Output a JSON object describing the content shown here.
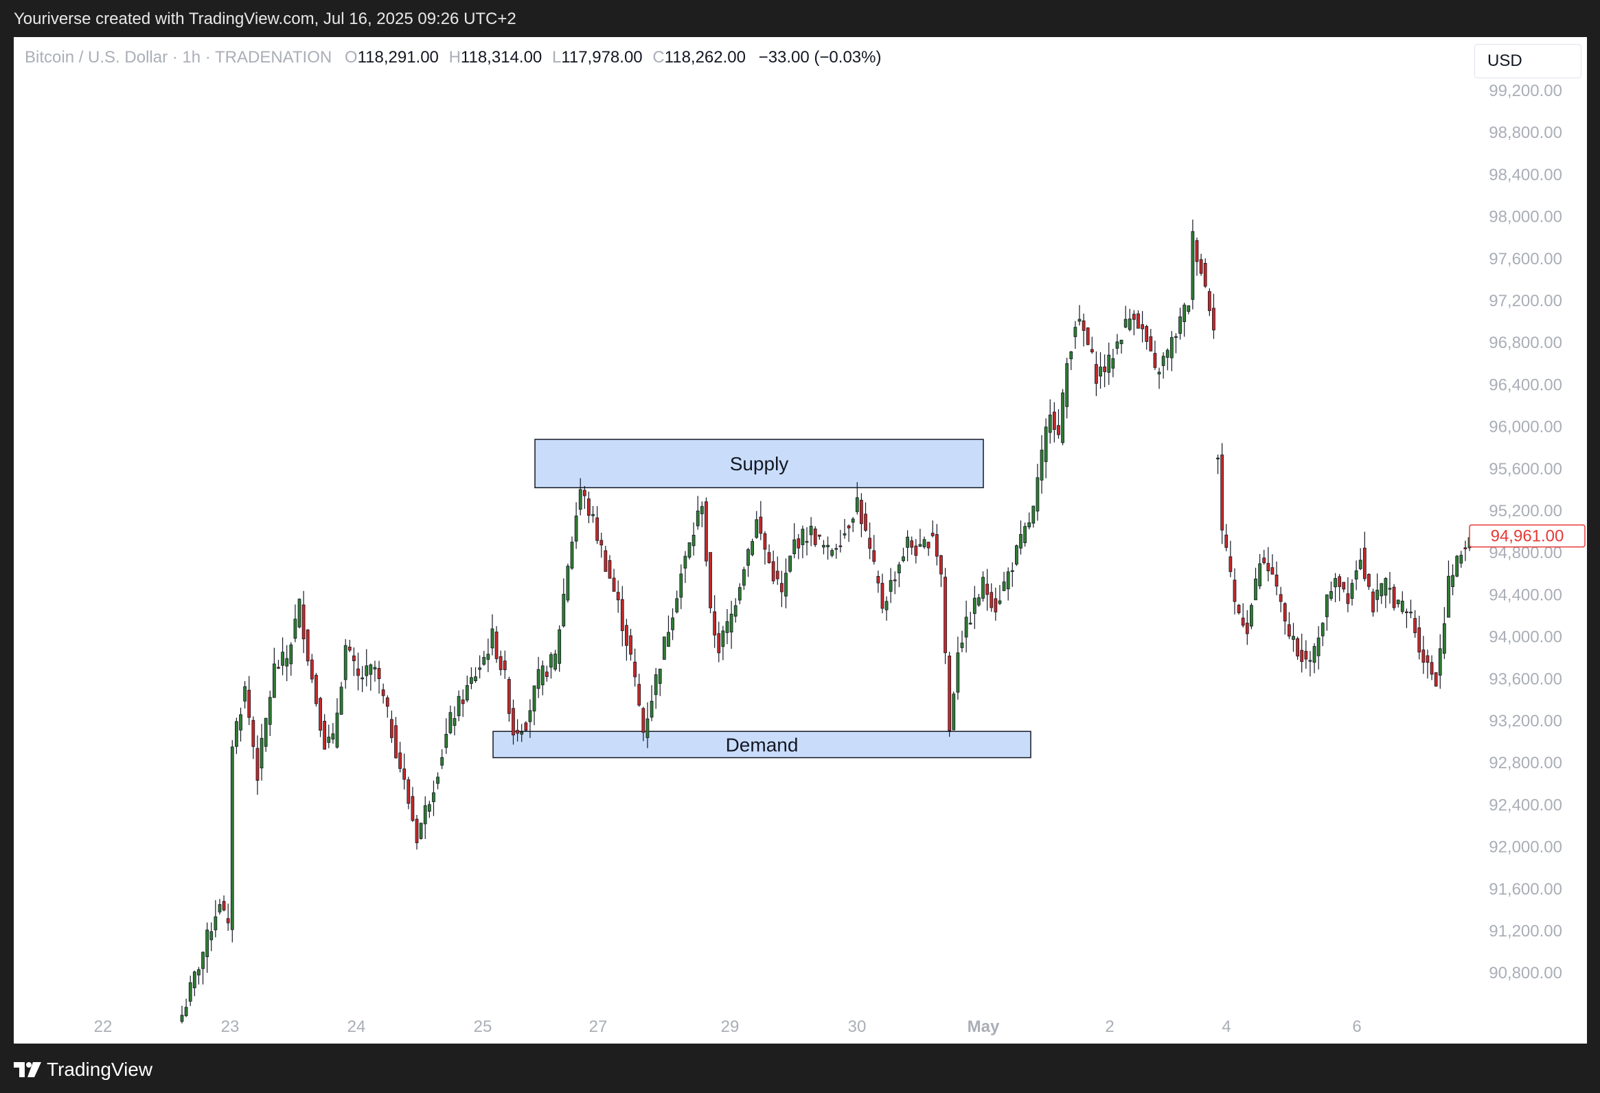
{
  "header": {
    "attribution": "Youriverse created with TradingView.com, Jul 16, 2025 09:26 UTC+2"
  },
  "legend": {
    "symbol": "Bitcoin / U.S. Dollar · 1h · TRADENATION",
    "open_label": "O",
    "open_value": "118,291.00",
    "high_label": "H",
    "high_value": "118,314.00",
    "low_label": "L",
    "low_value": "117,978.00",
    "close_label": "C",
    "close_value": "118,262.00",
    "change": "−33.00 (−0.03%)"
  },
  "currency_button": "USD",
  "footer": {
    "brand": "TradingView"
  },
  "colors": {
    "up": "#26a69a",
    "up_fill": "#2e7d32",
    "down": "#c62828",
    "zone_fill": "#c9ddfb",
    "zone_border": "#131722",
    "price_tag": "#e53935"
  },
  "chart_data": {
    "type": "candlestick",
    "ylim": [
      90400,
      99600
    ],
    "y_ticks": [
      "99,200.00",
      "98,800.00",
      "98,400.00",
      "98,000.00",
      "97,600.00",
      "97,200.00",
      "96,800.00",
      "96,400.00",
      "96,000.00",
      "95,600.00",
      "95,200.00",
      "94,800.00",
      "94,400.00",
      "94,000.00",
      "93,600.00",
      "93,200.00",
      "92,800.00",
      "92,400.00",
      "92,000.00",
      "91,600.00",
      "91,200.00",
      "90,800.00"
    ],
    "x_ticks": [
      {
        "label": "22",
        "bold": false
      },
      {
        "label": "23",
        "bold": false
      },
      {
        "label": "24",
        "bold": false
      },
      {
        "label": "25",
        "bold": false
      },
      {
        "label": "27",
        "bold": false
      },
      {
        "label": "29",
        "bold": false
      },
      {
        "label": "30",
        "bold": false
      },
      {
        "label": "May",
        "bold": true
      },
      {
        "label": "2",
        "bold": false
      },
      {
        "label": "4",
        "bold": false
      },
      {
        "label": "6",
        "bold": false
      }
    ],
    "last_price": "94,961.00",
    "last_price_value": 94961,
    "zones": [
      {
        "label": "Supply",
        "top": 95880,
        "bottom": 95420
      },
      {
        "label": "Demand",
        "top": 93100,
        "bottom": 92850
      }
    ],
    "price_path": [
      {
        "i": 0,
        "p": 90400
      },
      {
        "i": 5,
        "p": 91000
      },
      {
        "i": 9,
        "p": 91500
      },
      {
        "i": 11,
        "p": 91200
      },
      {
        "i": 12,
        "p": 93000
      },
      {
        "i": 15,
        "p": 93500
      },
      {
        "i": 18,
        "p": 92700
      },
      {
        "i": 22,
        "p": 93700
      },
      {
        "i": 25,
        "p": 93800
      },
      {
        "i": 28,
        "p": 94300
      },
      {
        "i": 31,
        "p": 93600
      },
      {
        "i": 34,
        "p": 93000
      },
      {
        "i": 36,
        "p": 93000
      },
      {
        "i": 39,
        "p": 93900
      },
      {
        "i": 42,
        "p": 93600
      },
      {
        "i": 46,
        "p": 93700
      },
      {
        "i": 50,
        "p": 93100
      },
      {
        "i": 53,
        "p": 92600
      },
      {
        "i": 56,
        "p": 92100
      },
      {
        "i": 60,
        "p": 92600
      },
      {
        "i": 64,
        "p": 93200
      },
      {
        "i": 68,
        "p": 93500
      },
      {
        "i": 72,
        "p": 93800
      },
      {
        "i": 74,
        "p": 94000
      },
      {
        "i": 77,
        "p": 93600
      },
      {
        "i": 79,
        "p": 93100
      },
      {
        "i": 82,
        "p": 93200
      },
      {
        "i": 85,
        "p": 93600
      },
      {
        "i": 89,
        "p": 93800
      },
      {
        "i": 92,
        "p": 94700
      },
      {
        "i": 95,
        "p": 95400
      },
      {
        "i": 98,
        "p": 95100
      },
      {
        "i": 101,
        "p": 94700
      },
      {
        "i": 104,
        "p": 94300
      },
      {
        "i": 107,
        "p": 93800
      },
      {
        "i": 110,
        "p": 93100
      },
      {
        "i": 113,
        "p": 93600
      },
      {
        "i": 116,
        "p": 94100
      },
      {
        "i": 119,
        "p": 94600
      },
      {
        "i": 122,
        "p": 95000
      },
      {
        "i": 124,
        "p": 95300
      },
      {
        "i": 126,
        "p": 94200
      },
      {
        "i": 128,
        "p": 93900
      },
      {
        "i": 131,
        "p": 94200
      },
      {
        "i": 134,
        "p": 94700
      },
      {
        "i": 137,
        "p": 95100
      },
      {
        "i": 140,
        "p": 94700
      },
      {
        "i": 143,
        "p": 94400
      },
      {
        "i": 146,
        "p": 94900
      },
      {
        "i": 150,
        "p": 95000
      },
      {
        "i": 154,
        "p": 94800
      },
      {
        "i": 158,
        "p": 95000
      },
      {
        "i": 161,
        "p": 95300
      },
      {
        "i": 164,
        "p": 94800
      },
      {
        "i": 167,
        "p": 94300
      },
      {
        "i": 170,
        "p": 94600
      },
      {
        "i": 173,
        "p": 94900
      },
      {
        "i": 176,
        "p": 94800
      },
      {
        "i": 179,
        "p": 95000
      },
      {
        "i": 181,
        "p": 94600
      },
      {
        "i": 183,
        "p": 93100
      },
      {
        "i": 185,
        "p": 93900
      },
      {
        "i": 188,
        "p": 94200
      },
      {
        "i": 191,
        "p": 94500
      },
      {
        "i": 194,
        "p": 94300
      },
      {
        "i": 197,
        "p": 94600
      },
      {
        "i": 200,
        "p": 94900
      },
      {
        "i": 203,
        "p": 95200
      },
      {
        "i": 205,
        "p": 95700
      },
      {
        "i": 207,
        "p": 96200
      },
      {
        "i": 209,
        "p": 95900
      },
      {
        "i": 211,
        "p": 96600
      },
      {
        "i": 213,
        "p": 97000
      },
      {
        "i": 215,
        "p": 96900
      },
      {
        "i": 218,
        "p": 96500
      },
      {
        "i": 221,
        "p": 96600
      },
      {
        "i": 224,
        "p": 96900
      },
      {
        "i": 227,
        "p": 97100
      },
      {
        "i": 230,
        "p": 96800
      },
      {
        "i": 232,
        "p": 96500
      },
      {
        "i": 235,
        "p": 96700
      },
      {
        "i": 238,
        "p": 97000
      },
      {
        "i": 240,
        "p": 97200
      },
      {
        "i": 241,
        "p": 97800
      },
      {
        "i": 243,
        "p": 97500
      },
      {
        "i": 246,
        "p": 97000
      },
      {
        "i": 247,
        "p": 95700
      },
      {
        "i": 248,
        "p": 95000
      },
      {
        "i": 251,
        "p": 94300
      },
      {
        "i": 254,
        "p": 94100
      },
      {
        "i": 257,
        "p": 94700
      },
      {
        "i": 260,
        "p": 94600
      },
      {
        "i": 263,
        "p": 94100
      },
      {
        "i": 266,
        "p": 93900
      },
      {
        "i": 269,
        "p": 93700
      },
      {
        "i": 272,
        "p": 94200
      },
      {
        "i": 275,
        "p": 94600
      },
      {
        "i": 278,
        "p": 94400
      },
      {
        "i": 281,
        "p": 94800
      },
      {
        "i": 284,
        "p": 94300
      },
      {
        "i": 287,
        "p": 94500
      },
      {
        "i": 290,
        "p": 94300
      },
      {
        "i": 293,
        "p": 94200
      },
      {
        "i": 296,
        "p": 93800
      },
      {
        "i": 299,
        "p": 93600
      },
      {
        "i": 302,
        "p": 94500
      },
      {
        "i": 305,
        "p": 94800
      },
      {
        "i": 307,
        "p": 94961
      }
    ],
    "gap_after_index": 246
  }
}
